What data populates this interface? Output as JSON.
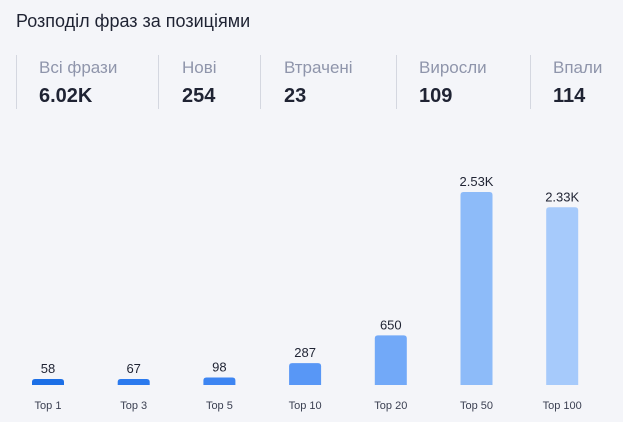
{
  "title": "Розподіл фраз за позиціями",
  "stats": [
    {
      "label": "Всі фрази",
      "value": "6.02K"
    },
    {
      "label": "Нові",
      "value": "254"
    },
    {
      "label": "Втрачені",
      "value": "23"
    },
    {
      "label": "Виросли",
      "value": "109"
    },
    {
      "label": "Впали",
      "value": "114"
    }
  ],
  "chart_data": {
    "type": "bar",
    "categories": [
      "Top 1",
      "Top 3",
      "Top 5",
      "Top 10",
      "Top 20",
      "Top 50",
      "Top 100"
    ],
    "values": [
      58,
      67,
      98,
      287,
      650,
      2530,
      2330
    ],
    "value_labels": [
      "58",
      "67",
      "98",
      "287",
      "650",
      "2.53K",
      "2.33K"
    ],
    "bar_colors": [
      "#1c6fe6",
      "#2b7aee",
      "#3d85f2",
      "#5897f6",
      "#72a9f8",
      "#8dbbf9",
      "#a6cafb"
    ],
    "grid": false,
    "legend": "none"
  }
}
